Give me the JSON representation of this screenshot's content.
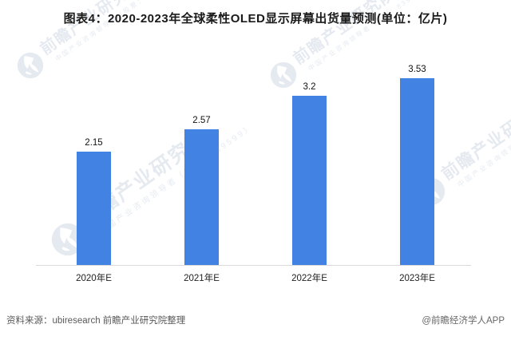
{
  "title": "图表4：2020-2023年全球柔性OLED显示屏幕出货量预测(单位：亿片)",
  "chart_data": {
    "type": "bar",
    "categories": [
      "2020年E",
      "2021年E",
      "2022年E",
      "2023年E"
    ],
    "values": [
      2.15,
      2.57,
      3.2,
      3.53
    ],
    "value_labels": [
      "2.15",
      "2.57",
      "3.2",
      "3.53"
    ],
    "title": "图表4：2020-2023年全球柔性OLED显示屏幕出货量预测(单位：亿片)",
    "xlabel": "",
    "ylabel": "",
    "unit": "亿片",
    "ylim": [
      0,
      4.2
    ],
    "grid": false,
    "legend": false,
    "bar_color": "#4282e2"
  },
  "footer": {
    "source_label": "资料来源：ubiresearch 前瞻产业研究院整理",
    "credit_label": "@前瞻经济学人APP"
  },
  "watermark": {
    "brand_text": "前瞻产业研究院",
    "brand_subtext": "中国产业咨询领导者（股票：839599）",
    "logo_name": "qianzhan-bird-logo"
  },
  "colors": {
    "bar": "#4282e2",
    "axis_line": "#d9d9d9",
    "title_text": "#1a1a1a",
    "value_label_text": "#111111",
    "x_label_text": "#222222",
    "footer_text": "#595959",
    "watermark": "#c3cddc"
  }
}
